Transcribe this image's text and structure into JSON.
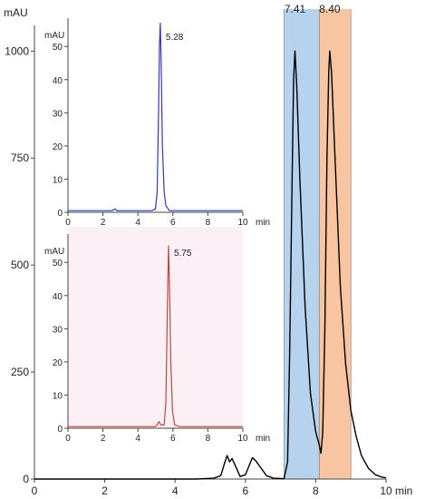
{
  "chart_data": [
    {
      "type": "line",
      "ylabel": "mAU",
      "xlabel": "min",
      "xlim": [
        0,
        10
      ],
      "ylim": [
        0,
        1060
      ],
      "x_ticks": [
        0,
        2,
        4,
        6,
        8,
        10
      ],
      "y_ticks": [
        0,
        250,
        500,
        750,
        1000
      ],
      "series": [
        {
          "color": "#000000",
          "points": [
            [
              0,
              0
            ],
            [
              4.6,
              0
            ],
            [
              5.1,
              2
            ],
            [
              5.3,
              8
            ],
            [
              5.4,
              35
            ],
            [
              5.48,
              55
            ],
            [
              5.55,
              40
            ],
            [
              5.62,
              48
            ],
            [
              5.72,
              30
            ],
            [
              5.85,
              6
            ],
            [
              6.0,
              10
            ],
            [
              6.1,
              30
            ],
            [
              6.2,
              50
            ],
            [
              6.3,
              42
            ],
            [
              6.45,
              25
            ],
            [
              6.6,
              8
            ],
            [
              6.8,
              2
            ],
            [
              7.1,
              1
            ],
            [
              7.2,
              40
            ],
            [
              7.26,
              300
            ],
            [
              7.32,
              650
            ],
            [
              7.37,
              930
            ],
            [
              7.41,
              1000
            ],
            [
              7.46,
              920
            ],
            [
              7.55,
              700
            ],
            [
              7.7,
              400
            ],
            [
              7.85,
              200
            ],
            [
              8.0,
              110
            ],
            [
              8.1,
              80
            ],
            [
              8.15,
              60
            ],
            [
              8.2,
              110
            ],
            [
              8.26,
              350
            ],
            [
              8.32,
              750
            ],
            [
              8.37,
              950
            ],
            [
              8.4,
              1000
            ],
            [
              8.45,
              950
            ],
            [
              8.55,
              750
            ],
            [
              8.7,
              450
            ],
            [
              8.85,
              270
            ],
            [
              9.0,
              160
            ],
            [
              9.15,
              100
            ],
            [
              9.3,
              55
            ],
            [
              9.5,
              25
            ],
            [
              9.7,
              10
            ],
            [
              9.9,
              4
            ],
            [
              10,
              3
            ]
          ]
        }
      ],
      "peak_labels": [
        {
          "x": 7.41,
          "text": "7.41"
        },
        {
          "x": 8.4,
          "text": "8.40"
        }
      ],
      "bands": [
        {
          "x0": 7.1,
          "x1": 8.1,
          "color": "#9dc3e6"
        },
        {
          "x0": 8.1,
          "x1": 9.0,
          "color": "#f4b183"
        }
      ]
    },
    {
      "type": "line",
      "ylabel": "mAU",
      "xlabel": "min",
      "xlim": [
        0,
        10
      ],
      "ylim": [
        0,
        58
      ],
      "x_ticks": [
        0,
        2,
        4,
        6,
        8,
        10
      ],
      "y_ticks": [
        0,
        10,
        20,
        30,
        40,
        50
      ],
      "series": [
        {
          "color": "#2d3bb0",
          "points": [
            [
              0,
              0.5
            ],
            [
              2.5,
              0.5
            ],
            [
              2.7,
              1
            ],
            [
              2.8,
              0.5
            ],
            [
              4.8,
              0.5
            ],
            [
              5.0,
              1
            ],
            [
              5.1,
              6
            ],
            [
              5.18,
              30
            ],
            [
              5.23,
              50
            ],
            [
              5.28,
              57
            ],
            [
              5.33,
              45
            ],
            [
              5.4,
              20
            ],
            [
              5.5,
              6
            ],
            [
              5.6,
              2
            ],
            [
              5.8,
              0.5
            ],
            [
              10,
              0.5
            ]
          ]
        }
      ],
      "peak_labels": [
        {
          "x": 5.28,
          "text": "5.28"
        }
      ]
    },
    {
      "type": "line",
      "ylabel": "mAU",
      "xlabel": "min",
      "xlim": [
        0,
        10
      ],
      "ylim": [
        0,
        58
      ],
      "x_ticks": [
        0,
        2,
        4,
        6,
        8,
        10
      ],
      "y_ticks": [
        0,
        10,
        20,
        30,
        40,
        50
      ],
      "series": [
        {
          "color": "#b84a3a",
          "points": [
            [
              0,
              0.5
            ],
            [
              5.0,
              0.5
            ],
            [
              5.1,
              1
            ],
            [
              5.2,
              2
            ],
            [
              5.3,
              1
            ],
            [
              5.5,
              1
            ],
            [
              5.6,
              8
            ],
            [
              5.68,
              35
            ],
            [
              5.75,
              55
            ],
            [
              5.8,
              45
            ],
            [
              5.88,
              20
            ],
            [
              5.98,
              5
            ],
            [
              6.1,
              1
            ],
            [
              6.4,
              0.5
            ],
            [
              10,
              0.5
            ]
          ]
        }
      ],
      "peak_labels": [
        {
          "x": 5.75,
          "text": "5.75"
        }
      ]
    }
  ]
}
